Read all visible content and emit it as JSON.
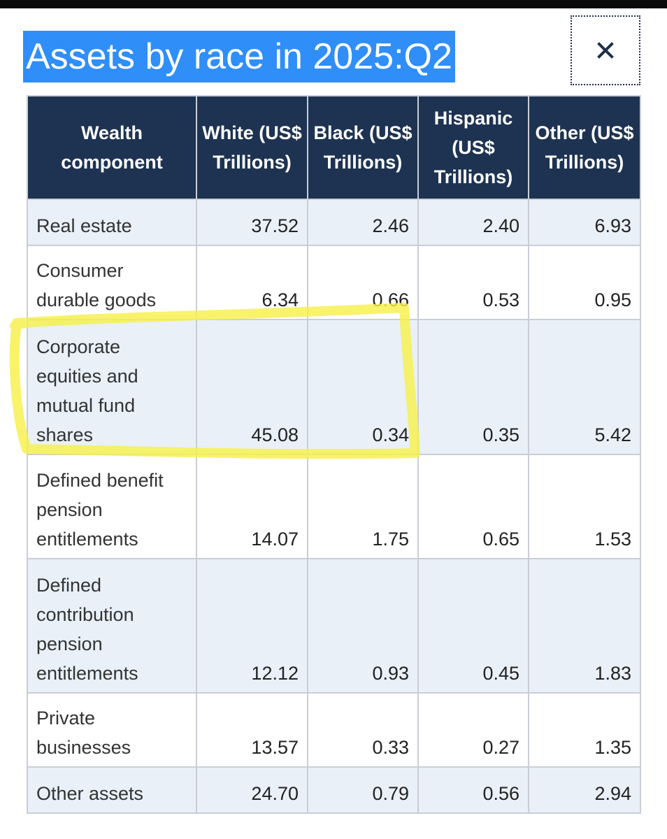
{
  "title": "Assets by race in 2025:Q2",
  "close_label": "×",
  "headers": [
    "Wealth component",
    "White (US$ Trillions)",
    "Black (US$ Trillions)",
    "Hispanic (US$ Trillions)",
    "Other (US$ Trillions)"
  ],
  "rows": [
    {
      "component": "Real estate",
      "values": [
        "37.52",
        "2.46",
        "2.40",
        "6.93"
      ]
    },
    {
      "component": "Consumer durable goods",
      "values": [
        "6.34",
        "0.66",
        "0.53",
        "0.95"
      ]
    },
    {
      "component": "Corporate equities and mutual fund shares",
      "values": [
        "45.08",
        "0.34",
        "0.35",
        "5.42"
      ]
    },
    {
      "component": "Defined benefit pension entitlements",
      "values": [
        "14.07",
        "1.75",
        "0.65",
        "1.53"
      ]
    },
    {
      "component": "Defined contribution pension entitlements",
      "values": [
        "12.12",
        "0.93",
        "0.45",
        "1.83"
      ]
    },
    {
      "component": "Private businesses",
      "values": [
        "13.57",
        "0.33",
        "0.27",
        "1.35"
      ]
    },
    {
      "component": "Other assets",
      "values": [
        "24.70",
        "0.79",
        "0.56",
        "2.94"
      ]
    }
  ],
  "colors": {
    "header_bg": "#1e3352",
    "title_highlight": "#2f8ef8",
    "row_stripe": "#e9f0f8",
    "annotation_marker": "#f6f04a"
  }
}
